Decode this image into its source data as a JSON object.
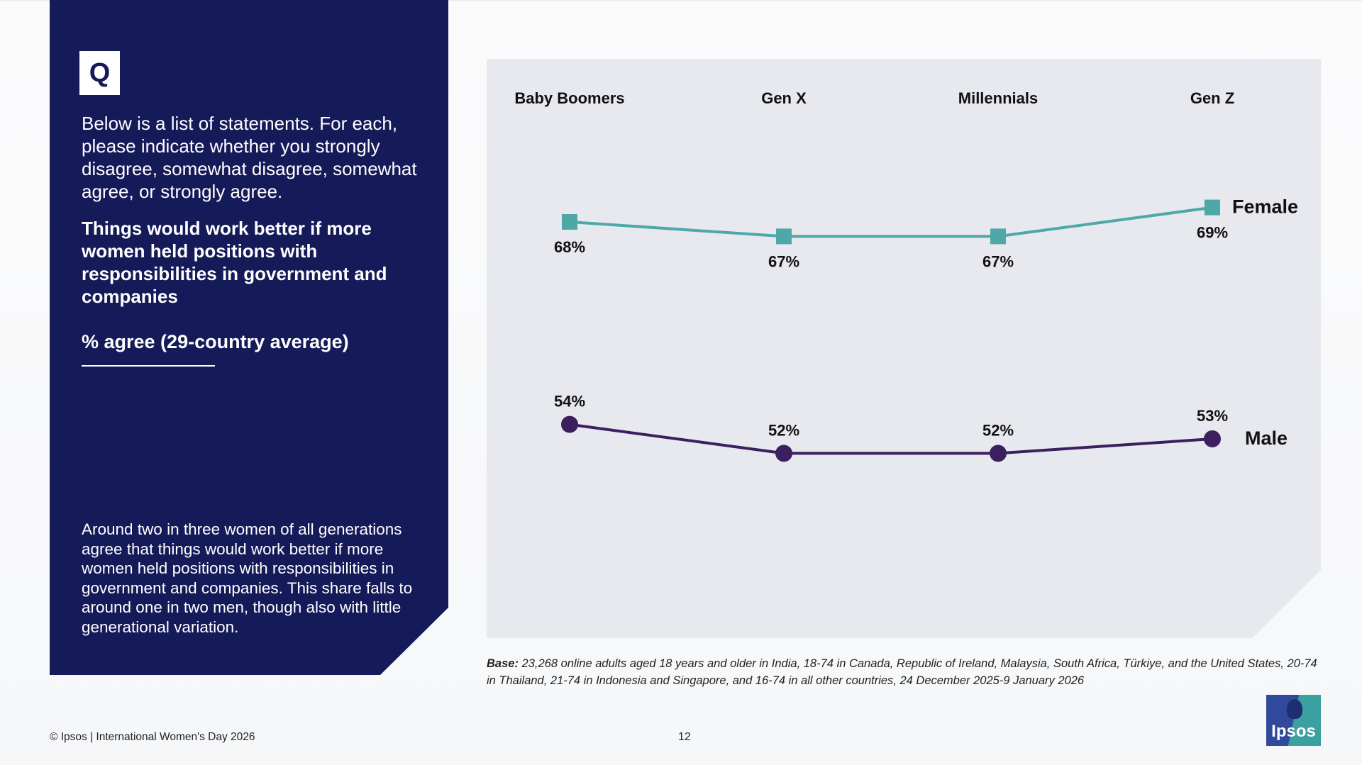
{
  "panel": {
    "badge": "Q",
    "intro": "Below is a list of statements. For each, please indicate whether you strongly disagree, somewhat disagree, somewhat agree, or strongly agree.",
    "statement": "Things would work better if more women held positions with responsibilities in government and companies",
    "metric": "% agree (29-country average)",
    "summary": "Around two in three women of all generations agree that things would work better if more women held positions with responsibilities in government and companies. This share falls to around one in two men, though also with little generational variation."
  },
  "chart_data": {
    "type": "line",
    "categories": [
      "Baby Boomers",
      "Gen X",
      "Millennials",
      "Gen Z"
    ],
    "series": [
      {
        "name": "Female",
        "values": [
          68,
          67,
          67,
          69
        ],
        "labels": [
          "68%",
          "67%",
          "67%",
          "69%"
        ],
        "color": "#4fa8a8",
        "marker": "square"
      },
      {
        "name": "Male",
        "values": [
          54,
          52,
          52,
          53
        ],
        "labels": [
          "54%",
          "52%",
          "52%",
          "53%"
        ],
        "color": "#3b1f5e",
        "marker": "circle"
      }
    ],
    "unit": "%",
    "grid": false,
    "legend": "inline-right",
    "background": "#e7e9ee"
  },
  "base": {
    "label": "Base:",
    "text": " 23,268 online adults aged 18 years and older in India, 18-74 in Canada, Republic of Ireland, Malaysia, South Africa, Türkiye, and the United States, 20-74 in Thailand, 21-74 in Indonesia and Singapore, and 16-74 in all other countries, 24 December 2025-9 January 2026"
  },
  "footer": {
    "copyright": "© Ipsos | International Women's Day 2026",
    "page_number": "12",
    "logo_text": "Ipsos"
  },
  "colors": {
    "panel_navy": "#151a59",
    "female_teal": "#4fa8a8",
    "male_purple": "#3b1f5e"
  }
}
